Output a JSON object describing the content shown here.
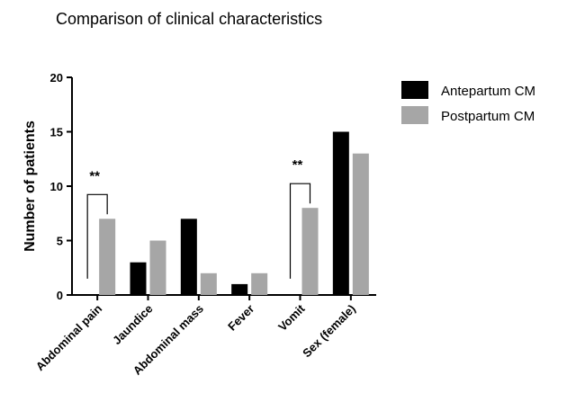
{
  "chart_data": {
    "type": "bar",
    "title": "Comparison of clinical characteristics",
    "ylabel": "Number of patients",
    "xlabel": "",
    "ylim": [
      0,
      20
    ],
    "yticks": [
      0,
      5,
      10,
      15,
      20
    ],
    "categories": [
      "Abdominal pain",
      "Jaundice",
      "Abdominal mass",
      "Fever",
      "Vomit",
      "Sex (female)"
    ],
    "series": [
      {
        "name": "Antepartum CM",
        "color": "#000000",
        "values": [
          0,
          3,
          7,
          1,
          0,
          15
        ]
      },
      {
        "name": "Postpartum CM",
        "color": "#a6a6a6",
        "values": [
          7,
          5,
          2,
          2,
          8,
          13
        ]
      }
    ],
    "annotations": [
      {
        "category": "Abdominal pain",
        "text": "**"
      },
      {
        "category": "Vomit",
        "text": "**"
      }
    ],
    "legend": "top-right",
    "grid": false
  }
}
